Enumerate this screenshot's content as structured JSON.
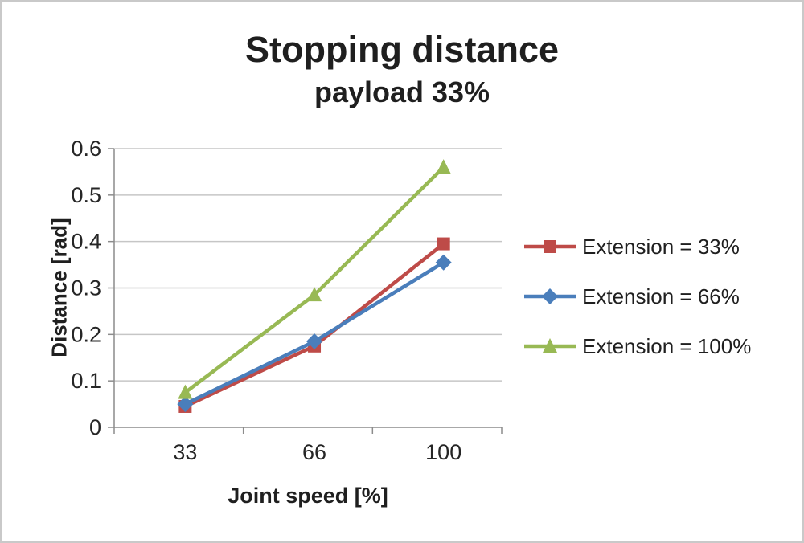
{
  "figure": {
    "title": "Stopping distance",
    "subtitle": "payload 33%"
  },
  "chart_data": {
    "type": "line",
    "categories": [
      "33",
      "66",
      "100"
    ],
    "xlabel": "Joint speed [%]",
    "ylabel": "Distance [rad]",
    "ylim": [
      0,
      0.6
    ],
    "yticks": [
      "0",
      "0.1",
      "0.2",
      "0.3",
      "0.4",
      "0.5",
      "0.6"
    ],
    "grid": true,
    "legend_position": "right",
    "series": [
      {
        "name": "Extension = 33%",
        "values": [
          0.045,
          0.175,
          0.395
        ],
        "color": "#be4b48",
        "marker": "square"
      },
      {
        "name": "Extension = 66%",
        "values": [
          0.05,
          0.185,
          0.355
        ],
        "color": "#4a7ebb",
        "marker": "diamond"
      },
      {
        "name": "Extension = 100%",
        "values": [
          0.075,
          0.285,
          0.56
        ],
        "color": "#98b954",
        "marker": "triangle"
      }
    ],
    "colors": {
      "grid": "#c6c6c6",
      "axis": "#8c8c8c",
      "text": "#262626"
    }
  }
}
